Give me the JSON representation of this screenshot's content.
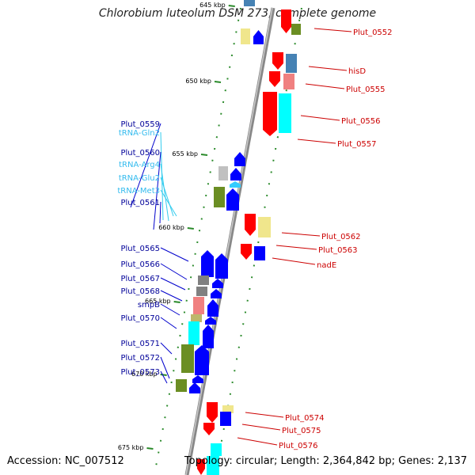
{
  "title": "Chlorobium luteolum DSM 273, complete genome",
  "accession": "Accession: NC_007512",
  "topology": "Topology: circular; Length: 2,364,842 bp; Genes: 2,137",
  "colors": {
    "forward": "#0000ff",
    "reverse": "#ff0000",
    "trna": "#33ccff",
    "forward_label": "#000099",
    "reverse_label": "#cc0000",
    "trna_label": "#33bbee",
    "cog_olive": "#6b8e23",
    "cog_cyan": "#00ffff",
    "cog_pink": "#f08080",
    "cog_khaki": "#f0e68c",
    "cog_steel": "#4682b4",
    "cog_gray": "#808080",
    "cog_tan": "#bdb76b",
    "cog_light": "#c0c0c0"
  },
  "kbp_ticks": [
    {
      "label": "645 kbp"
    },
    {
      "label": "650 kbp"
    },
    {
      "label": "655 kbp"
    },
    {
      "label": "660 kbp"
    },
    {
      "label": "665 kbp"
    },
    {
      "label": "670 kbp"
    },
    {
      "label": "675 kbp"
    }
  ],
  "left_labels": [
    {
      "text": "Plut_0559",
      "type": "forward"
    },
    {
      "text": "tRNA-Gln2",
      "type": "trna"
    },
    {
      "text": "Plut_0560",
      "type": "forward"
    },
    {
      "text": "tRNA-Arg4",
      "type": "trna"
    },
    {
      "text": "tRNA-Glu2",
      "type": "trna"
    },
    {
      "text": "tRNA-Met3",
      "type": "trna"
    },
    {
      "text": "Plut_0561",
      "type": "forward"
    },
    {
      "text": "Plut_0565",
      "type": "forward"
    },
    {
      "text": "Plut_0566",
      "type": "forward"
    },
    {
      "text": "Plut_0567",
      "type": "forward"
    },
    {
      "text": "Plut_0568",
      "type": "forward"
    },
    {
      "text": "smpB",
      "type": "forward"
    },
    {
      "text": "Plut_0570",
      "type": "forward"
    },
    {
      "text": "Plut_0571",
      "type": "forward"
    },
    {
      "text": "Plut_0572",
      "type": "forward"
    },
    {
      "text": "Plut_0573",
      "type": "forward"
    }
  ],
  "right_labels": [
    {
      "text": "Plut_0552"
    },
    {
      "text": "hisD"
    },
    {
      "text": "Plut_0555"
    },
    {
      "text": "Plut_0556"
    },
    {
      "text": "Plut_0557"
    },
    {
      "text": "Plut_0562"
    },
    {
      "text": "Plut_0563"
    },
    {
      "text": "nadE"
    },
    {
      "text": "Plut_0574"
    },
    {
      "text": "Plut_0575"
    },
    {
      "text": "Plut_0576"
    }
  ]
}
